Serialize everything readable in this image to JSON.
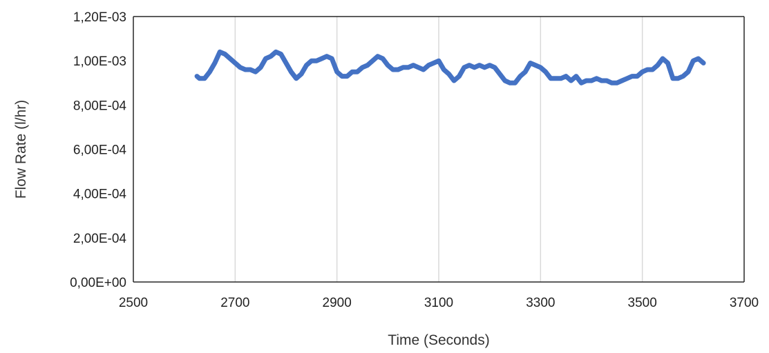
{
  "chart_data": {
    "type": "line",
    "title": "",
    "xlabel": "Time (Seconds)",
    "ylabel": "Flow Rate (l/hr)",
    "xlim": [
      2500,
      3700
    ],
    "ylim": [
      0,
      0.0012
    ],
    "x_ticks": [
      2500,
      2700,
      2900,
      3100,
      3300,
      3500,
      3700
    ],
    "x_tick_labels": [
      "2500",
      "2700",
      "2900",
      "3100",
      "3300",
      "3500",
      "3700"
    ],
    "y_ticks": [
      0,
      0.0002,
      0.0004,
      0.0006,
      0.0008,
      0.001,
      0.0012
    ],
    "y_tick_labels": [
      "0,00E+00",
      "2,00E-04",
      "4,00E-04",
      "6,00E-04",
      "8,00E-04",
      "1,00E-03",
      "1,20E-03"
    ],
    "grid": "vertical",
    "legend": "none",
    "series_color": "#4472C4",
    "x": [
      2625,
      2630,
      2640,
      2650,
      2660,
      2670,
      2680,
      2690,
      2700,
      2710,
      2720,
      2730,
      2740,
      2750,
      2760,
      2770,
      2780,
      2790,
      2800,
      2810,
      2820,
      2830,
      2840,
      2850,
      2860,
      2870,
      2880,
      2890,
      2900,
      2910,
      2920,
      2930,
      2940,
      2950,
      2960,
      2970,
      2980,
      2990,
      3000,
      3010,
      3020,
      3030,
      3040,
      3050,
      3060,
      3070,
      3080,
      3090,
      3100,
      3110,
      3120,
      3130,
      3140,
      3150,
      3160,
      3170,
      3180,
      3190,
      3200,
      3210,
      3220,
      3230,
      3240,
      3250,
      3260,
      3270,
      3280,
      3290,
      3300,
      3310,
      3320,
      3330,
      3340,
      3350,
      3360,
      3370,
      3380,
      3390,
      3400,
      3410,
      3420,
      3430,
      3440,
      3450,
      3460,
      3470,
      3480,
      3490,
      3500,
      3510,
      3520,
      3530,
      3540,
      3550,
      3560,
      3570,
      3580,
      3590,
      3600,
      3610,
      3620
    ],
    "values": [
      0.00093,
      0.00092,
      0.00092,
      0.00095,
      0.00099,
      0.00104,
      0.00103,
      0.00101,
      0.00099,
      0.00097,
      0.00096,
      0.00096,
      0.00095,
      0.00097,
      0.00101,
      0.00102,
      0.00104,
      0.00103,
      0.00099,
      0.00095,
      0.00092,
      0.00094,
      0.00098,
      0.001,
      0.001,
      0.00101,
      0.00102,
      0.00101,
      0.00095,
      0.00093,
      0.00093,
      0.00095,
      0.00095,
      0.00097,
      0.00098,
      0.001,
      0.00102,
      0.00101,
      0.00098,
      0.00096,
      0.00096,
      0.00097,
      0.00097,
      0.00098,
      0.00097,
      0.00096,
      0.00098,
      0.00099,
      0.001,
      0.00096,
      0.00094,
      0.00091,
      0.00093,
      0.00097,
      0.00098,
      0.00097,
      0.00098,
      0.00097,
      0.00098,
      0.00097,
      0.00094,
      0.00091,
      0.0009,
      0.0009,
      0.00093,
      0.00095,
      0.00099,
      0.00098,
      0.00097,
      0.00095,
      0.00092,
      0.00092,
      0.00092,
      0.00093,
      0.00091,
      0.00093,
      0.0009,
      0.00091,
      0.00091,
      0.00092,
      0.00091,
      0.00091,
      0.0009,
      0.0009,
      0.00091,
      0.00092,
      0.00093,
      0.00093,
      0.00095,
      0.00096,
      0.00096,
      0.00098,
      0.00101,
      0.00099,
      0.00092,
      0.00092,
      0.00093,
      0.00095,
      0.001,
      0.00101,
      0.00099
    ]
  }
}
